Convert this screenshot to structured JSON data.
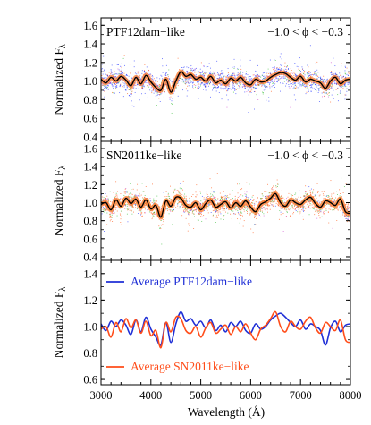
{
  "chart_data": {
    "type": "line",
    "xlabel": "Wavelength (Å)",
    "xlim": [
      3000,
      8000
    ],
    "xticks": [
      "3000",
      "4000",
      "5000",
      "6000",
      "7000",
      "8000"
    ],
    "panels": [
      {
        "id": "ptf12dam",
        "ylabel": "Normalized F",
        "ylabel_subscript": "λ",
        "ylim": [
          0.35,
          1.68
        ],
        "yticks": [
          "0.4",
          "0.6",
          "0.8",
          "1.0",
          "1.2",
          "1.4",
          "1.6"
        ],
        "label": "PTF12dam−like",
        "phase_label": "−1.0 < ϕ < −0.3",
        "point_colors": [
          "#2233ff",
          "#ff5511",
          "#33bb33",
          "#cc44cc"
        ],
        "series": [
          {
            "x": [
              3000,
              3100,
              3200,
              3300,
              3400,
              3500,
              3600,
              3700,
              3800,
              3900,
              4000,
              4100,
              4200,
              4300,
              4400,
              4500,
              4600,
              4700,
              4800,
              4900,
              5000,
              5100,
              5200,
              5300,
              5400,
              5500,
              5600,
              5700,
              5800,
              5900,
              6000,
              6100,
              6200,
              6300,
              6400,
              6500,
              6600,
              6700,
              6800,
              6900,
              7000,
              7100,
              7200,
              7300,
              7400,
              7500,
              7600,
              7700,
              7800,
              7900,
              8000
            ],
            "values": [
              1.02,
              0.98,
              1.04,
              1.0,
              1.05,
              1.01,
              0.95,
              1.04,
              0.97,
              1.06,
              0.99,
              0.93,
              0.9,
              1.02,
              0.88,
              1.0,
              1.1,
              1.05,
              1.07,
              1.02,
              1.04,
              1.0,
              1.05,
              0.98,
              1.01,
              0.97,
              1.03,
              1.0,
              1.04,
              0.98,
              0.96,
              1.02,
              0.99,
              1.0,
              1.04,
              1.07,
              1.09,
              1.08,
              1.04,
              1.01,
              1.05,
              0.99,
              1.02,
              1.0,
              0.98,
              0.92,
              1.0,
              1.04,
              0.97,
              1.01,
              1.02
            ],
            "color": "#000000"
          }
        ]
      },
      {
        "id": "sn2011ke",
        "ylabel": "Normalized F",
        "ylabel_subscript": "λ",
        "ylim": [
          0.36,
          1.68
        ],
        "yticks": [
          "0.4",
          "0.6",
          "0.8",
          "1.0",
          "1.2",
          "1.4",
          "1.6"
        ],
        "label": "SN2011ke−like",
        "phase_label": "−1.0 < ϕ < −0.3",
        "point_colors": [
          "#ff5511",
          "#33bb33",
          "#2233ff",
          "#cc44cc"
        ],
        "series": [
          {
            "x": [
              3000,
              3100,
              3200,
              3300,
              3400,
              3500,
              3600,
              3700,
              3800,
              3900,
              4000,
              4100,
              4200,
              4300,
              4400,
              4500,
              4600,
              4700,
              4800,
              4900,
              5000,
              5100,
              5200,
              5300,
              5400,
              5500,
              5600,
              5700,
              5800,
              5900,
              6000,
              6100,
              6200,
              6300,
              6400,
              6500,
              6600,
              6700,
              6800,
              6900,
              7000,
              7100,
              7200,
              7300,
              7400,
              7500,
              7600,
              7700,
              7800,
              7900,
              8000
            ],
            "values": [
              0.98,
              1.0,
              0.92,
              1.03,
              0.96,
              1.05,
              0.99,
              1.04,
              0.95,
              1.03,
              0.93,
              0.97,
              0.84,
              1.02,
              0.96,
              1.06,
              1.05,
              0.97,
              0.95,
              1.0,
              0.92,
              0.99,
              1.03,
              0.95,
              0.98,
              1.01,
              0.94,
              1.0,
              0.96,
              1.02,
              0.95,
              0.9,
              0.98,
              1.01,
              1.05,
              1.1,
              1.0,
              0.96,
              1.03,
              1.0,
              0.98,
              1.03,
              1.06,
              0.99,
              0.95,
              1.02,
              1.0,
              0.97,
              1.04,
              0.9,
              0.88
            ],
            "color": "#000000"
          }
        ]
      },
      {
        "id": "average",
        "ylabel": "Normalized F",
        "ylabel_subscript": "λ",
        "ylim": [
          0.56,
          1.5
        ],
        "yticks": [
          "0.6",
          "0.8",
          "1.0",
          "1.2",
          "1.4"
        ],
        "series": [
          {
            "name": "Average PTF12dam−like",
            "color": "#1f2fd6",
            "x": [
              3000,
              3100,
              3200,
              3300,
              3400,
              3500,
              3600,
              3700,
              3800,
              3900,
              4000,
              4100,
              4200,
              4300,
              4400,
              4500,
              4600,
              4700,
              4800,
              4900,
              5000,
              5100,
              5200,
              5300,
              5400,
              5500,
              5600,
              5700,
              5800,
              5900,
              6000,
              6100,
              6200,
              6300,
              6400,
              6500,
              6600,
              6700,
              6800,
              6900,
              7000,
              7100,
              7200,
              7300,
              7400,
              7500,
              7600,
              7700,
              7800,
              7900,
              8000
            ],
            "values": [
              1.02,
              0.97,
              1.04,
              1.0,
              1.05,
              1.01,
              0.94,
              1.05,
              0.96,
              1.07,
              0.98,
              0.92,
              0.86,
              1.03,
              0.88,
              1.02,
              1.11,
              1.04,
              1.06,
              1.01,
              1.04,
              0.99,
              1.05,
              0.97,
              1.01,
              0.96,
              1.03,
              1.0,
              1.04,
              0.97,
              0.95,
              1.02,
              0.98,
              1.0,
              1.05,
              1.08,
              1.1,
              1.07,
              1.03,
              1.0,
              1.05,
              0.98,
              1.02,
              1.0,
              0.97,
              0.86,
              0.99,
              1.04,
              0.96,
              1.01,
              1.02
            ]
          },
          {
            "name": "Average SN2011ke−like",
            "color": "#ff4d1a",
            "x": [
              3000,
              3100,
              3200,
              3300,
              3400,
              3500,
              3600,
              3700,
              3800,
              3900,
              4000,
              4100,
              4200,
              4300,
              4400,
              4500,
              4600,
              4700,
              4800,
              4900,
              5000,
              5100,
              5200,
              5300,
              5400,
              5500,
              5600,
              5700,
              5800,
              5900,
              6000,
              6100,
              6200,
              6300,
              6400,
              6500,
              6600,
              6700,
              6800,
              6900,
              7000,
              7100,
              7200,
              7300,
              7400,
              7500,
              7600,
              7700,
              7800,
              7900,
              8000
            ],
            "values": [
              0.98,
              1.0,
              0.92,
              1.03,
              0.96,
              1.06,
              0.99,
              1.05,
              0.95,
              1.04,
              0.93,
              0.97,
              0.84,
              1.03,
              0.96,
              1.07,
              1.06,
              0.97,
              0.95,
              1.0,
              0.92,
              0.99,
              1.03,
              0.95,
              0.98,
              1.01,
              0.94,
              1.0,
              0.96,
              1.02,
              0.95,
              0.9,
              0.98,
              1.01,
              1.06,
              1.11,
              1.0,
              0.96,
              1.04,
              1.0,
              0.98,
              1.04,
              1.07,
              0.99,
              0.95,
              1.03,
              1.0,
              0.97,
              1.05,
              0.9,
              0.88
            ]
          }
        ]
      }
    ]
  }
}
